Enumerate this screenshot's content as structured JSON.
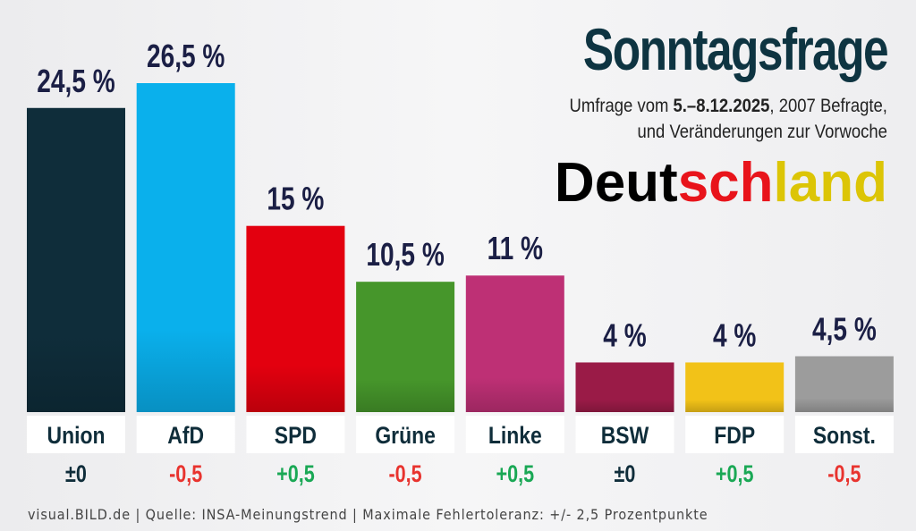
{
  "header": {
    "title": "Sonntagsfrage",
    "subtitle_prefix": "Umfrage vom ",
    "subtitle_dates": "5.–8.12.2025",
    "subtitle_suffix": ", 2007 Befragte,",
    "subtitle_line2": "und Veränderungen zur Vorwoche",
    "country_parts": [
      {
        "text": "Deut",
        "color": "#000000"
      },
      {
        "text": "sch",
        "color": "#e8141b"
      },
      {
        "text": "land",
        "color": "#dcc506"
      }
    ]
  },
  "footer": {
    "source": "visual.BILD.de | Quelle: INSA-Meinungstrend | Maximale Fehlertoleranz: +/- 2,5 Prozentpunkte"
  },
  "chart_data": {
    "type": "bar",
    "title": "Sonntagsfrage",
    "xlabel": "",
    "ylabel": "",
    "ylim": [
      0,
      26.5
    ],
    "grid": false,
    "categories": [
      "Union",
      "AfD",
      "SPD",
      "Grüne",
      "Linke",
      "BSW",
      "FDP",
      "Sonst."
    ],
    "values": [
      24.5,
      26.5,
      15,
      10.5,
      11,
      4,
      4,
      4.5
    ],
    "value_labels": [
      "24,5 %",
      "26,5 %",
      "15 %",
      "10,5 %",
      "11 %",
      "4 %",
      "4 %",
      "4,5 %"
    ],
    "changes": [
      "±0",
      "-0,5",
      "+0,5",
      "-0,5",
      "+0,5",
      "±0",
      "+0,5",
      "-0,5"
    ],
    "bar_colors": [
      "#0f2d3a",
      "#0ab0ec",
      "#e3000f",
      "#46962b",
      "#be3075",
      "#9a1b47",
      "#f2c218",
      "#9c9c9c"
    ],
    "change_colors": {
      "neutral": "#0f2d3a",
      "negative": "#e8332e",
      "positive": "#1aa855"
    },
    "label_color": "#1b1f45",
    "category_color": "#0f2d3a"
  }
}
